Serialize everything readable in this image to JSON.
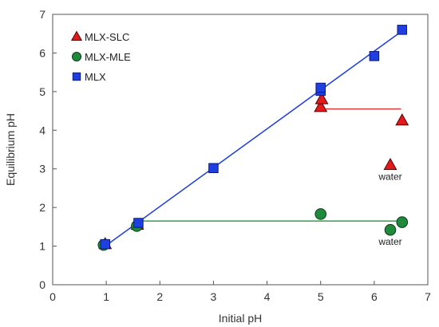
{
  "chart_data": {
    "type": "scatter",
    "xlabel": "Initial pH",
    "ylabel": "Equilibrium pH",
    "xlim": [
      0,
      7
    ],
    "ylim": [
      0,
      7
    ],
    "xticks": [
      0,
      1,
      2,
      3,
      4,
      5,
      6,
      7
    ],
    "yticks": [
      0,
      1,
      2,
      3,
      4,
      5,
      6,
      7
    ],
    "grid": false,
    "legend_position": "top-left",
    "series": [
      {
        "name": "MLX-SLC",
        "marker": "triangle",
        "color": "#e31a1c",
        "points": [
          [
            0.98,
            1.05
          ],
          [
            1.58,
            1.55
          ],
          [
            5.0,
            4.6
          ],
          [
            5.02,
            4.8
          ],
          [
            6.52,
            4.25
          ],
          [
            6.3,
            3.1
          ]
        ]
      },
      {
        "name": "MLX-MLE",
        "marker": "circle",
        "color": "#1f8a3c",
        "points": [
          [
            0.95,
            1.03
          ],
          [
            1.57,
            1.52
          ],
          [
            5.0,
            1.83
          ],
          [
            6.3,
            1.42
          ],
          [
            6.52,
            1.62
          ]
        ]
      },
      {
        "name": "MLX",
        "marker": "square",
        "color": "#1f3fe0",
        "points": [
          [
            0.98,
            1.05
          ],
          [
            1.6,
            1.6
          ],
          [
            3.0,
            3.02
          ],
          [
            5.0,
            5.02
          ],
          [
            5.0,
            5.1
          ],
          [
            6.0,
            5.92
          ],
          [
            6.52,
            6.6
          ]
        ]
      }
    ],
    "lines": [
      {
        "x": [
          1.0,
          6.55
        ],
        "y": [
          1.02,
          6.6
        ],
        "color": "#1f3fe0"
      },
      {
        "x": [
          5.0,
          6.5
        ],
        "y": [
          4.55,
          4.55
        ],
        "color": "#d93a3a"
      },
      {
        "x": [
          1.6,
          6.52
        ],
        "y": [
          1.65,
          1.65
        ],
        "color": "#3a9a4f"
      }
    ],
    "annotations": [
      {
        "text": "water",
        "x": 6.3,
        "y": 2.8
      },
      {
        "text": "water",
        "x": 6.3,
        "y": 1.12
      }
    ]
  }
}
